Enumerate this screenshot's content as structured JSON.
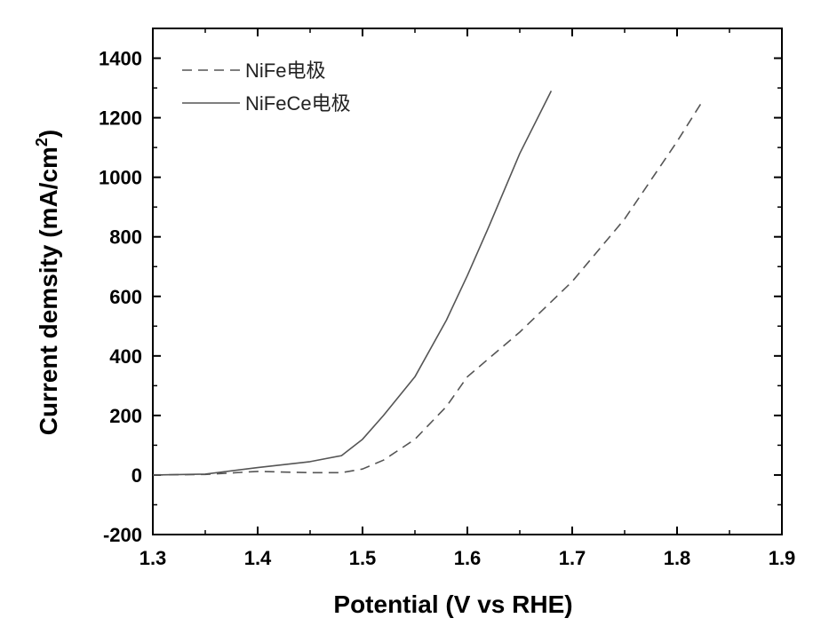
{
  "chart_data": {
    "type": "line",
    "xlabel": "Potential (V vs RHE)",
    "ylabel_main": "Current demsity (mA/cm",
    "ylabel_sup": "2",
    "ylabel_close": ")",
    "xlim": [
      1.3,
      1.9
    ],
    "ylim": [
      -200,
      1500
    ],
    "xticks": [
      1.3,
      1.4,
      1.5,
      1.6,
      1.7,
      1.8,
      1.9
    ],
    "xtick_labels": [
      "1.3",
      "1.4",
      "1.5",
      "1.6",
      "1.7",
      "1.8",
      "1.9"
    ],
    "yticks": [
      -200,
      0,
      200,
      400,
      600,
      800,
      1000,
      1200,
      1400
    ],
    "ytick_labels": [
      "-200",
      "0",
      "200",
      "400",
      "600",
      "800",
      "1000",
      "1200",
      "1400"
    ],
    "grid": false,
    "legend_position": "top-left",
    "series": [
      {
        "name": "NiFe电极",
        "style": "dashed",
        "color": "#555555",
        "x": [
          1.3,
          1.35,
          1.4,
          1.45,
          1.48,
          1.5,
          1.52,
          1.55,
          1.58,
          1.6,
          1.65,
          1.7,
          1.75,
          1.8,
          1.825
        ],
        "y": [
          0,
          2,
          12,
          8,
          8,
          20,
          50,
          120,
          230,
          330,
          480,
          650,
          860,
          1120,
          1260
        ]
      },
      {
        "name": "NiFeCe电极",
        "style": "solid",
        "color": "#555555",
        "x": [
          1.3,
          1.35,
          1.4,
          1.45,
          1.48,
          1.5,
          1.52,
          1.55,
          1.58,
          1.6,
          1.62,
          1.65,
          1.68
        ],
        "y": [
          0,
          3,
          25,
          45,
          65,
          120,
          200,
          330,
          520,
          670,
          830,
          1080,
          1290
        ]
      }
    ]
  }
}
